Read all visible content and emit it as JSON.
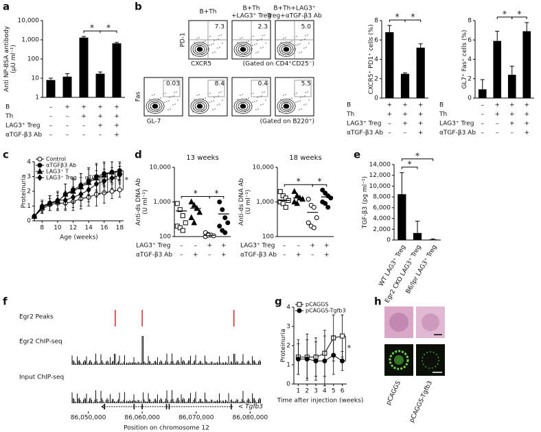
{
  "panel_letters": [
    "a",
    "b",
    "c",
    "d",
    "e",
    "f",
    "g",
    "h"
  ],
  "chart_data": [
    {
      "type": "bar",
      "log_y": true,
      "y_label": [
        "Anti NP-BSA antibody",
        "(μU ml⁻¹)"
      ],
      "ylim": [
        1,
        10000
      ],
      "yticks": [
        1,
        10,
        100,
        {
          "value": 1000,
          "label": "1,000"
        },
        {
          "value": 10000,
          "label": "10,000"
        }
      ],
      "values": [
        8,
        12,
        1300,
        17,
        650
      ],
      "errors": [
        2,
        5,
        200,
        4,
        80
      ],
      "color": "#000000",
      "conditions": [
        {
          "label": "B",
          "values": [
            "–",
            "+",
            "+",
            "+",
            "+"
          ]
        },
        {
          "label": "Th",
          "values": [
            "–",
            "–",
            "+",
            "+",
            "+"
          ]
        },
        {
          "label": "LAG3⁺ Treg",
          "values": [
            "–",
            "–",
            "–",
            "+",
            "+"
          ]
        },
        {
          "label": "αTGF-β3 Ab",
          "values": [
            "–",
            "–",
            "–",
            "–",
            "+"
          ]
        }
      ],
      "significance": [
        {
          "groups": [
            2,
            3
          ],
          "label": "*"
        },
        {
          "groups": [
            3,
            4
          ],
          "label": "*"
        }
      ]
    },
    {
      "type": "bar",
      "y_label": [
        "CXCR5⁺ PD1⁺ cells (%)"
      ],
      "ylim": [
        0,
        8
      ],
      "yticks": [
        0,
        2,
        4,
        6,
        8
      ],
      "values": [
        6.8,
        2.5,
        5.2
      ],
      "errors": [
        0.7,
        0.1,
        0.4
      ],
      "color": "#000000",
      "conditions": [
        {
          "label": "B",
          "values": [
            "+",
            "+",
            "+"
          ]
        },
        {
          "label": "Th",
          "values": [
            "+",
            "+",
            "+"
          ]
        },
        {
          "label": "LAG3⁺ Treg",
          "values": [
            "–",
            "+",
            "+"
          ]
        },
        {
          "label": "αTGF-β3 Ab",
          "values": [
            "–",
            "–",
            "+"
          ]
        }
      ],
      "significance": [
        {
          "groups": [
            0,
            1
          ],
          "label": "*"
        },
        {
          "groups": [
            1,
            2
          ],
          "label": "*"
        }
      ]
    },
    {
      "type": "bar",
      "y_label": [
        "GL7⁺ Fas⁺ cells (%)"
      ],
      "ylim": [
        0,
        8
      ],
      "yticks": [
        0,
        2,
        4,
        6,
        8
      ],
      "values": [
        0.9,
        5.9,
        2.4,
        6.9
      ],
      "errors": [
        1.0,
        1.0,
        0.9,
        0.9
      ],
      "color": "#000000",
      "conditions": [
        {
          "label": "B",
          "values": [
            "–",
            "+",
            "+",
            "+"
          ]
        },
        {
          "label": "Th",
          "values": [
            "–",
            "+",
            "+",
            "+"
          ]
        },
        {
          "label": "LAG3⁺ Treg",
          "values": [
            "–",
            "–",
            "+",
            "+"
          ]
        },
        {
          "label": "αTGF-β3 Ab",
          "values": [
            "–",
            "–",
            "–",
            "+"
          ]
        }
      ],
      "significance": [
        {
          "groups": [
            1,
            2
          ],
          "label": "*"
        },
        {
          "groups": [
            2,
            3
          ],
          "label": "*"
        }
      ]
    },
    {
      "type": "line",
      "y_label": [
        "Proteinuria"
      ],
      "x_label": "Age (weeks)",
      "legend": "upper left",
      "x": [
        7,
        8,
        9,
        10,
        11,
        12,
        13,
        14,
        15,
        16,
        17,
        18
      ],
      "xlim": [
        7,
        18.5
      ],
      "xticks": [
        8,
        10,
        12,
        14,
        16,
        18
      ],
      "ylim": [
        0,
        4
      ],
      "yticks": [
        0,
        1,
        2,
        3,
        4
      ],
      "series": [
        {
          "name": "Control",
          "marker": "circle-open",
          "color": "#000000",
          "values": [
            0.3,
            0.8,
            1.1,
            1.2,
            1.2,
            1.3,
            1.5,
            1.6,
            1.8,
            1.9,
            2.0,
            2.1
          ],
          "errors": [
            0.1,
            0.3,
            0.4,
            0.5,
            0.5,
            0.6,
            0.7,
            0.6,
            0.8,
            0.7,
            0.5,
            0.5
          ]
        },
        {
          "name": "αTGFβ3 Ab",
          "marker": "circle",
          "color": "#000000",
          "values": [
            0.3,
            0.9,
            1.2,
            1.3,
            1.8,
            2.1,
            2.4,
            2.7,
            3.0,
            3.2,
            3.3,
            3.4
          ],
          "errors": [
            0.1,
            0.4,
            0.5,
            0.6,
            0.7,
            0.8,
            0.8,
            0.9,
            0.9,
            0.8,
            0.7,
            0.6
          ]
        },
        {
          "name": "LAG3⁺ T",
          "marker": "triangle",
          "color": "#000000",
          "values": [
            0.3,
            0.9,
            1.2,
            1.3,
            1.8,
            2.0,
            2.3,
            2.6,
            2.9,
            3.1,
            3.3,
            3.3
          ],
          "errors": [
            0.1,
            0.4,
            0.5,
            0.6,
            0.7,
            0.8,
            0.9,
            0.9,
            0.9,
            0.8,
            0.7,
            0.6
          ]
        },
        {
          "name": "LAG3⁺ Treg + αTGF-β3 Ab",
          "marker": "diamond",
          "color": "#000000",
          "values": [
            0.3,
            1.0,
            1.2,
            1.4,
            1.4,
            1.6,
            1.8,
            2.1,
            2.5,
            2.7,
            2.9,
            3.1
          ],
          "errors": [
            0.1,
            0.4,
            0.5,
            0.6,
            0.6,
            0.7,
            0.8,
            0.8,
            0.9,
            0.8,
            0.7,
            0.6
          ]
        }
      ],
      "significance": [
        {
          "x": 15,
          "label": "*"
        },
        {
          "x": 16,
          "label": "*"
        },
        {
          "x": 17,
          "label": "*"
        },
        {
          "x": 18,
          "label": "*"
        }
      ]
    },
    {
      "type": "scatter",
      "title": "13 weeks",
      "log_y": true,
      "y_label": [
        "Anti-ds DNA Ab",
        "(U ml⁻¹)"
      ],
      "ylim": [
        100,
        10000
      ],
      "yticks": [
        100,
        {
          "value": 1000,
          "label": "1,000"
        },
        {
          "value": 10000,
          "label": "10,000"
        }
      ],
      "markers": [
        "square-open",
        "triangle",
        "circle-open",
        "circle"
      ],
      "groups": [
        {
          "values": [
            900,
            600,
            400,
            250,
            200,
            180,
            150
          ],
          "mean": 550
        },
        {
          "values": [
            1000,
            800,
            650,
            500,
            350,
            250
          ],
          "mean": 650
        },
        {
          "values": [
            130,
            115,
            110,
            105,
            100,
            110
          ],
          "mean": 108
        },
        {
          "values": [
            1000,
            600,
            350,
            250,
            200,
            150,
            130
          ],
          "mean": 450
        }
      ],
      "conditions": [
        {
          "label": "LAG3⁺ Treg",
          "values": [
            "–",
            "–",
            "+",
            "+"
          ]
        },
        {
          "label": "αTGF-β3 Ab",
          "values": [
            "–",
            "+",
            "–",
            "+"
          ]
        }
      ],
      "significance": [
        {
          "groups": [
            0,
            2
          ],
          "label": "*"
        },
        {
          "groups": [
            2,
            3
          ],
          "label": "*"
        }
      ]
    },
    {
      "type": "scatter",
      "title": "18 weeks",
      "log_y": true,
      "y_label": [
        "Anti-ds DNA Ab",
        "(U ml⁻¹)"
      ],
      "ylim": [
        100,
        10000
      ],
      "yticks": [
        100,
        {
          "value": 1000,
          "label": "1,000"
        },
        {
          "value": 10000,
          "label": "10,000"
        }
      ],
      "markers": [
        "square-open",
        "triangle",
        "circle-open",
        "circle"
      ],
      "groups": [
        {
          "values": [
            2000,
            1500,
            1300,
            1100,
            1000,
            900,
            700
          ],
          "mean": 1100
        },
        {
          "values": [
            2000,
            1500,
            1300,
            1200,
            1000,
            900
          ],
          "mean": 1300
        },
        {
          "values": [
            1200,
            800,
            700,
            350,
            250,
            200,
            180
          ],
          "mean": 500
        },
        {
          "values": [
            2200,
            1800,
            1500,
            1300,
            1000,
            900,
            700
          ],
          "mean": 1400
        }
      ],
      "conditions": [
        {
          "label": "LAG3⁺ Treg",
          "values": [
            "–",
            "–",
            "+",
            "+"
          ]
        },
        {
          "label": "αTGF-β3 Ab",
          "values": [
            "–",
            "+",
            "–",
            "+"
          ]
        }
      ],
      "significance": [
        {
          "groups": [
            0,
            2
          ],
          "label": "*"
        },
        {
          "groups": [
            2,
            3
          ],
          "label": "*"
        }
      ]
    },
    {
      "type": "bar",
      "y_label": [
        "TGF-β3 (pg ml⁻¹)"
      ],
      "ylim": [
        0,
        14000
      ],
      "yticks": [
        0,
        {
          "value": 2000,
          "label": "2,000"
        },
        {
          "value": 4000,
          "label": "4,000"
        },
        {
          "value": 6000,
          "label": "6,000"
        },
        {
          "value": 8000,
          "label": "8,000"
        },
        {
          "value": 10000,
          "label": "10,000"
        },
        {
          "value": 12000,
          "label": "12,000"
        },
        {
          "value": 14000,
          "label": "14,000"
        }
      ],
      "categories": [
        "WT LAG3⁺ Treg",
        "Egr2 CKO LAG3⁺ Treg",
        "B6/lpr LAG3⁺ Treg"
      ],
      "values": [
        8500,
        1300,
        100
      ],
      "errors": [
        4000,
        2200,
        100
      ],
      "color": "#000000",
      "significance": [
        {
          "groups": [
            0,
            1
          ],
          "label": "*"
        },
        {
          "groups": [
            0,
            2
          ],
          "label": "*"
        }
      ]
    },
    {
      "type": "line",
      "y_label": [
        "Proteinuria"
      ],
      "x_label": "Time after injection (weeks)",
      "legend": "upper left",
      "x": [
        1,
        2,
        3,
        4,
        5,
        6
      ],
      "xlim": [
        0.5,
        6.5
      ],
      "xticks": [
        1,
        2,
        3,
        4,
        5,
        6
      ],
      "ylim": [
        0,
        4
      ],
      "yticks": [
        0,
        1,
        2,
        3,
        4
      ],
      "series": [
        {
          "name": "pCAGGS",
          "marker": "square-open",
          "color": "#000000",
          "values": [
            1.4,
            1.4,
            1.4,
            1.6,
            2.4,
            2.5
          ],
          "errors": [
            0.9,
            1.2,
            1.0,
            1.2,
            1.2,
            1.1
          ]
        },
        {
          "name": "pCAGGS-Tgfb3",
          "marker": "circle",
          "color": "#000000",
          "values": [
            1.3,
            1.3,
            1.2,
            1.2,
            1.5,
            1.2
          ],
          "errors": [
            0.8,
            1.0,
            1.0,
            1.3,
            1.0,
            0.5
          ]
        }
      ],
      "significance": [
        {
          "x": 6,
          "label": "*"
        }
      ]
    }
  ],
  "flow": {
    "top": {
      "titles": [
        [
          "B+Th"
        ],
        [
          "B+Th",
          "+LAG3⁺ Treg"
        ],
        [
          "B+Th+LAG3⁺",
          "Treg+αTGF-β3 Ab"
        ]
      ],
      "values": [
        "7.3",
        "2.3",
        "5.0"
      ],
      "y_label": "PD-1",
      "x_label": "CXCR5",
      "gate_note": "(Gated on CD4⁺CD25⁻)"
    },
    "bottom": {
      "values": [
        "0.03",
        "8.4",
        "0.4",
        "5.5"
      ],
      "y_label": "Fas",
      "x_label": "GL-7",
      "gate_note": "(Gated on B220⁺)"
    }
  },
  "chip_seq": {
    "tracks": [
      "Egr2 Peaks",
      "Egr2 ChIP-seq",
      "Input ChIP-seq"
    ],
    "peaks": [
      86055000,
      86060000,
      86077000
    ],
    "peak_color": "#e02020",
    "gene": {
      "label": "< Tgfb3",
      "start": 86052500,
      "end": 86077000,
      "exons": [
        86053000,
        86058500,
        86060000,
        86064500,
        86065000,
        86076500
      ]
    },
    "xlim": [
      86047000,
      86082000
    ],
    "xticks": [
      {
        "value": 86050000,
        "label": "86,050,000"
      },
      {
        "value": 86060000,
        "label": "86,060,000"
      },
      {
        "value": 86070000,
        "label": "86,070,000"
      },
      {
        "value": 86080000,
        "label": "86,080,000"
      }
    ],
    "x_label": "Position on chromosome 12"
  },
  "histology": {
    "labels": [
      "pCAGGS",
      "pCAGGS-Tgfb3"
    ]
  }
}
